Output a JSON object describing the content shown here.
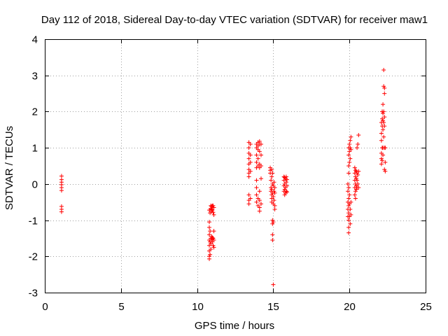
{
  "chart_data": {
    "type": "scatter",
    "title": "Day 112 of 2018, Sidereal Day-to-day VTEC variation (SDTVAR) for receiver maw1",
    "xlabel": "GPS time / hours",
    "ylabel": "SDTVAR / TECUs",
    "xlim": [
      0,
      25
    ],
    "ylim": [
      -3,
      4
    ],
    "xticks": [
      0,
      5,
      10,
      15,
      20,
      25
    ],
    "yticks": [
      -3,
      -2,
      -1,
      0,
      1,
      2,
      3,
      4
    ],
    "grid": true,
    "marker": "+",
    "color": "#ff0000",
    "series": [
      {
        "name": "maw1",
        "points": [
          [
            1.1,
            0.22
          ],
          [
            1.1,
            0.12
          ],
          [
            1.1,
            0.05
          ],
          [
            1.1,
            -0.02
          ],
          [
            1.1,
            -0.1
          ],
          [
            1.1,
            -0.18
          ],
          [
            1.1,
            -0.62
          ],
          [
            1.1,
            -0.7
          ],
          [
            1.1,
            -0.77
          ],
          [
            10.8,
            -0.72
          ],
          [
            10.8,
            -1.05
          ],
          [
            10.8,
            -1.2
          ],
          [
            10.8,
            -1.4
          ],
          [
            10.8,
            -1.55
          ],
          [
            10.8,
            -1.7
          ],
          [
            10.8,
            -1.85
          ],
          [
            10.8,
            -2.0
          ],
          [
            10.8,
            -2.07
          ],
          [
            10.85,
            -0.8
          ],
          [
            10.85,
            -1.3
          ],
          [
            10.85,
            -1.6
          ],
          [
            10.85,
            -1.95
          ],
          [
            10.9,
            -0.6
          ],
          [
            10.9,
            -0.68
          ],
          [
            10.9,
            -1.5
          ],
          [
            10.9,
            -1.65
          ],
          [
            10.9,
            -1.8
          ],
          [
            10.95,
            -0.62
          ],
          [
            10.95,
            -0.7
          ],
          [
            10.95,
            -0.76
          ],
          [
            10.95,
            -1.45
          ],
          [
            10.95,
            -1.55
          ],
          [
            11.0,
            -0.6
          ],
          [
            11.0,
            -0.65
          ],
          [
            11.0,
            -0.72
          ],
          [
            11.0,
            -1.48
          ],
          [
            11.0,
            -1.52
          ],
          [
            11.0,
            -1.6
          ],
          [
            11.05,
            -0.6
          ],
          [
            11.05,
            -0.78
          ],
          [
            11.05,
            -1.5
          ],
          [
            11.05,
            -1.7
          ],
          [
            11.1,
            -0.65
          ],
          [
            11.1,
            -0.85
          ],
          [
            11.1,
            -1.3
          ],
          [
            11.1,
            -1.55
          ],
          [
            11.1,
            -1.75
          ],
          [
            13.4,
            1.15
          ],
          [
            13.4,
            1.0
          ],
          [
            13.4,
            0.85
          ],
          [
            13.4,
            0.7
          ],
          [
            13.4,
            0.55
          ],
          [
            13.4,
            0.4
          ],
          [
            13.4,
            0.3
          ],
          [
            13.4,
            0.2
          ],
          [
            13.4,
            -0.3
          ],
          [
            13.4,
            -0.45
          ],
          [
            13.4,
            -0.55
          ],
          [
            13.5,
            1.1
          ],
          [
            13.5,
            0.8
          ],
          [
            13.5,
            0.6
          ],
          [
            13.5,
            0.35
          ],
          [
            13.5,
            -0.4
          ],
          [
            13.9,
            1.1
          ],
          [
            13.9,
            1.0
          ],
          [
            13.9,
            0.8
          ],
          [
            13.9,
            0.6
          ],
          [
            13.9,
            0.45
          ],
          [
            13.9,
            0.1
          ],
          [
            13.9,
            -0.1
          ],
          [
            13.9,
            -0.3
          ],
          [
            13.9,
            -0.5
          ],
          [
            14.0,
            1.15
          ],
          [
            14.0,
            1.05
          ],
          [
            14.0,
            0.95
          ],
          [
            14.0,
            0.7
          ],
          [
            14.0,
            0.5
          ],
          [
            14.0,
            -0.4
          ],
          [
            14.0,
            -0.6
          ],
          [
            14.1,
            1.18
          ],
          [
            14.1,
            1.1
          ],
          [
            14.1,
            0.9
          ],
          [
            14.1,
            0.55
          ],
          [
            14.1,
            0.45
          ],
          [
            14.1,
            -0.2
          ],
          [
            14.1,
            -0.45
          ],
          [
            14.1,
            -0.65
          ],
          [
            14.1,
            -0.75
          ],
          [
            14.2,
            1.1
          ],
          [
            14.2,
            0.8
          ],
          [
            14.2,
            0.5
          ],
          [
            14.2,
            0.15
          ],
          [
            14.2,
            -0.55
          ],
          [
            14.8,
            0.45
          ],
          [
            14.8,
            0.38
          ],
          [
            14.8,
            0.3
          ],
          [
            14.85,
            0.1
          ],
          [
            14.85,
            -0.1
          ],
          [
            14.85,
            -0.2
          ],
          [
            14.9,
            0.4
          ],
          [
            14.9,
            0.2
          ],
          [
            14.9,
            -0.15
          ],
          [
            14.9,
            -0.3
          ],
          [
            14.9,
            -0.4
          ],
          [
            14.9,
            -0.5
          ],
          [
            14.95,
            0.3
          ],
          [
            14.95,
            0.0
          ],
          [
            14.95,
            -0.25
          ],
          [
            14.95,
            -1.0
          ],
          [
            14.95,
            -1.1
          ],
          [
            14.95,
            -1.4
          ],
          [
            14.95,
            -1.55
          ],
          [
            15.0,
            -2.78
          ],
          [
            15.0,
            -0.05
          ],
          [
            15.0,
            -0.35
          ],
          [
            15.0,
            -0.55
          ],
          [
            15.0,
            -1.05
          ],
          [
            15.05,
            0.05
          ],
          [
            15.05,
            -0.2
          ],
          [
            15.05,
            -0.45
          ],
          [
            15.1,
            -0.1
          ],
          [
            15.1,
            -0.25
          ],
          [
            15.1,
            -0.6
          ],
          [
            15.1,
            -0.7
          ],
          [
            15.7,
            0.2
          ],
          [
            15.7,
            0.1
          ],
          [
            15.7,
            -0.05
          ],
          [
            15.7,
            -0.2
          ],
          [
            15.75,
            0.18
          ],
          [
            15.75,
            0.0
          ],
          [
            15.75,
            -0.15
          ],
          [
            15.75,
            -0.3
          ],
          [
            15.8,
            0.15
          ],
          [
            15.8,
            -0.1
          ],
          [
            15.8,
            -0.25
          ],
          [
            15.85,
            0.2
          ],
          [
            15.85,
            0.05
          ],
          [
            15.85,
            -0.2
          ],
          [
            15.9,
            0.12
          ],
          [
            15.9,
            -0.05
          ],
          [
            15.9,
            -0.22
          ],
          [
            19.9,
            0.0
          ],
          [
            19.9,
            -0.2
          ],
          [
            19.9,
            -0.5
          ],
          [
            19.9,
            -0.7
          ],
          [
            19.9,
            -0.9
          ],
          [
            19.95,
            1.0
          ],
          [
            19.95,
            0.8
          ],
          [
            19.95,
            0.5
          ],
          [
            19.95,
            0.3
          ],
          [
            19.95,
            -0.1
          ],
          [
            19.95,
            -0.4
          ],
          [
            19.95,
            -0.6
          ],
          [
            19.95,
            -0.8
          ],
          [
            19.95,
            -1.0
          ],
          [
            19.95,
            -1.2
          ],
          [
            19.95,
            -1.35
          ],
          [
            20.0,
            1.1
          ],
          [
            20.0,
            0.9
          ],
          [
            20.0,
            0.6
          ],
          [
            20.0,
            -0.3
          ],
          [
            20.0,
            -0.55
          ],
          [
            20.0,
            -0.9
          ],
          [
            20.05,
            1.2
          ],
          [
            20.05,
            1.0
          ],
          [
            20.05,
            0.7
          ],
          [
            20.05,
            -0.7
          ],
          [
            20.05,
            -1.1
          ],
          [
            20.1,
            1.3
          ],
          [
            20.1,
            0.95
          ],
          [
            20.1,
            -0.5
          ],
          [
            20.1,
            -0.85
          ],
          [
            20.35,
            0.45
          ],
          [
            20.35,
            0.3
          ],
          [
            20.35,
            0.1
          ],
          [
            20.35,
            -0.1
          ],
          [
            20.35,
            -0.3
          ],
          [
            20.4,
            0.38
          ],
          [
            20.4,
            0.2
          ],
          [
            20.4,
            0.0
          ],
          [
            20.4,
            -0.2
          ],
          [
            20.4,
            -0.4
          ],
          [
            20.45,
            0.35
          ],
          [
            20.45,
            0.15
          ],
          [
            20.45,
            -0.05
          ],
          [
            20.45,
            -0.15
          ],
          [
            20.5,
            1.0
          ],
          [
            20.5,
            0.3
          ],
          [
            20.5,
            0.1
          ],
          [
            20.5,
            -0.1
          ],
          [
            20.55,
            1.1
          ],
          [
            20.55,
            0.25
          ],
          [
            20.55,
            0.0
          ],
          [
            20.6,
            1.35
          ],
          [
            20.6,
            0.35
          ],
          [
            20.6,
            -0.1
          ],
          [
            22.1,
            0.55
          ],
          [
            22.1,
            0.7
          ],
          [
            22.1,
            0.85
          ],
          [
            22.1,
            1.2
          ],
          [
            22.1,
            1.4
          ],
          [
            22.1,
            1.7
          ],
          [
            22.15,
            2.0
          ],
          [
            22.15,
            1.8
          ],
          [
            22.15,
            1.6
          ],
          [
            22.15,
            1.0
          ],
          [
            22.15,
            0.65
          ],
          [
            22.2,
            2.2
          ],
          [
            22.2,
            1.95
          ],
          [
            22.2,
            1.75
          ],
          [
            22.2,
            1.5
          ],
          [
            22.2,
            1.0
          ],
          [
            22.2,
            0.8
          ],
          [
            22.25,
            3.15
          ],
          [
            22.25,
            2.7
          ],
          [
            22.25,
            2.0
          ],
          [
            22.25,
            1.7
          ],
          [
            22.25,
            1.3
          ],
          [
            22.3,
            2.65
          ],
          [
            22.3,
            2.5
          ],
          [
            22.3,
            1.85
          ],
          [
            22.3,
            1.6
          ],
          [
            22.3,
            1.0
          ],
          [
            22.3,
            0.4
          ],
          [
            22.35,
            0.35
          ],
          [
            22.35,
            0.6
          ],
          [
            22.35,
            1.0
          ]
        ]
      }
    ]
  }
}
